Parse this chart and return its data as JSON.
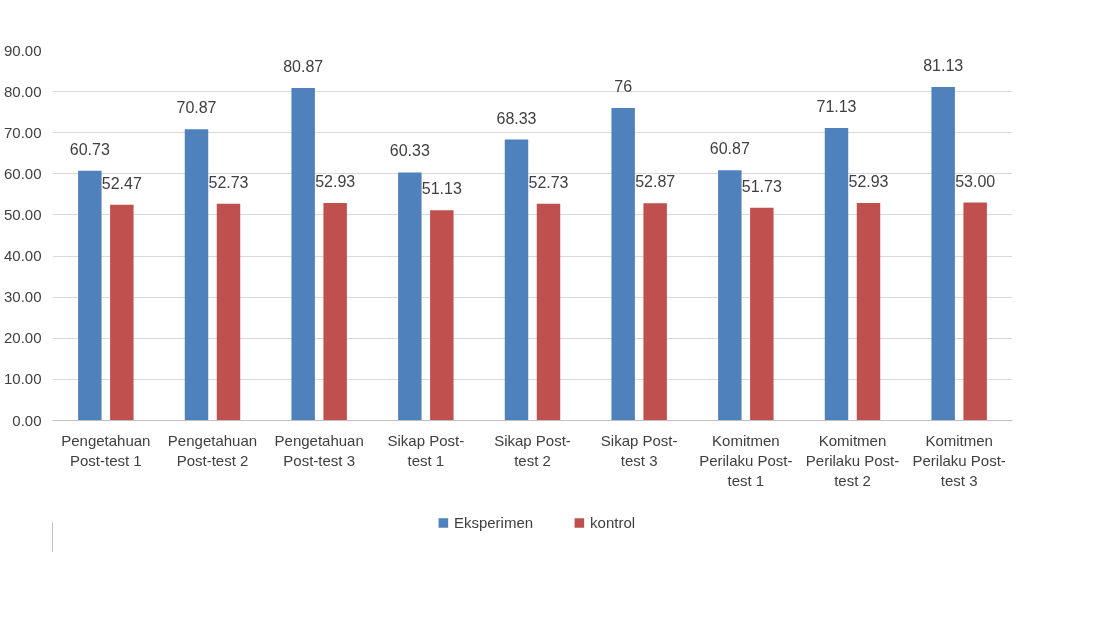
{
  "chart_data": {
    "type": "bar",
    "categories": [
      "Pengetahuan\nPost-test 1",
      "Pengetahuan\nPost-test 2",
      "Pengetahuan\nPost-test 3",
      "Sikap Post-\ntest 1",
      "Sikap Post-\ntest 2",
      "Sikap Post-\ntest 3",
      "Komitmen\nPerilaku Post-\ntest 1",
      "Komitmen\nPerilaku Post-\ntest 2",
      "Komitmen\nPerilaku Post-\ntest 3"
    ],
    "series": [
      {
        "name": "Eksperimen",
        "color": "#4f81bd",
        "values": [
          60.73,
          70.87,
          80.87,
          60.33,
          68.33,
          76,
          60.87,
          71.13,
          81.13
        ],
        "value_labels": [
          "60.73",
          "70.87",
          "80.87",
          "60.33",
          "68.33",
          "76",
          "60.87",
          "71.13",
          "81.13"
        ]
      },
      {
        "name": "kontrol",
        "color": "#c0504d",
        "values": [
          52.47,
          52.73,
          52.93,
          51.13,
          52.73,
          52.87,
          51.73,
          52.93,
          53.0
        ],
        "value_labels": [
          "52.47",
          "52.73",
          "52.93",
          "51.13",
          "52.73",
          "52.87",
          "51.73",
          "52.93",
          "53.00"
        ]
      }
    ],
    "ylim": [
      0,
      90
    ],
    "yticks": [
      {
        "value": 0,
        "label": "0.00"
      },
      {
        "value": 10,
        "label": "10.00"
      },
      {
        "value": 20,
        "label": "20.00"
      },
      {
        "value": 30,
        "label": "30.00"
      },
      {
        "value": 40,
        "label": "40.00"
      },
      {
        "value": 50,
        "label": "50.00"
      },
      {
        "value": 60,
        "label": "60.00"
      },
      {
        "value": 70,
        "label": "70.00"
      },
      {
        "value": 80,
        "label": "80.00"
      },
      {
        "value": 90,
        "label": "90.00"
      }
    ],
    "grid": "y",
    "legend": "bottom"
  }
}
